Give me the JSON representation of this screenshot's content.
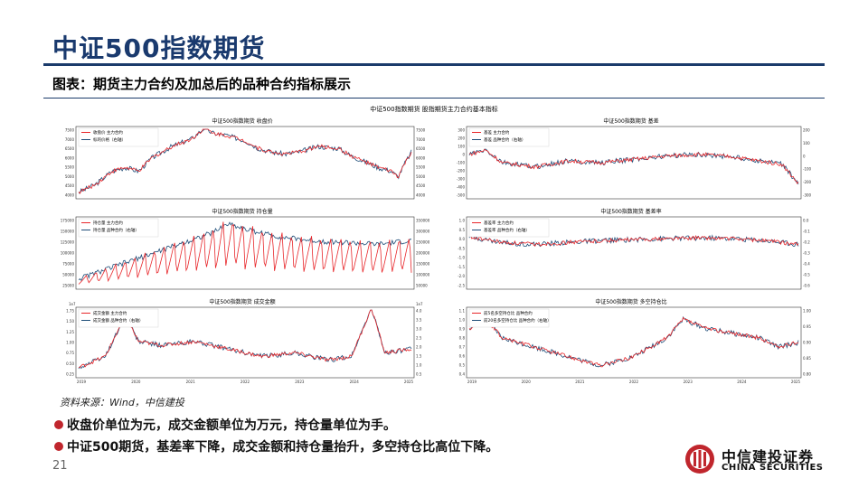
{
  "slide": {
    "title": "中证500指数期货",
    "subtitle": "图表：期货主力合约及加总后的品种合约指标展示",
    "source": "资料来源：Wind，中信建投",
    "notes": [
      "收盘价单位为元，成交金额单位为万元，持仓量单位为手。",
      "中证500期货，基差率下降，成交金额和持仓量抬升，多空持仓比高位下降。"
    ],
    "page_number": "21"
  },
  "logo": {
    "name_cn": "中信建投证券",
    "name_en": "CHINA SECURITIES",
    "icon": "china-securities-logo-icon",
    "color": "#c0262d"
  },
  "figure_title": "中证500指数期货 股指期货主力合约基本指标",
  "colors": {
    "red": "#e8262a",
    "blue": "#1f4e79",
    "title_blue": "#1a3a6e"
  },
  "chart_data": [
    {
      "type": "line",
      "title": "中证500指数期货 收盘价",
      "series": [
        {
          "name": "收盘价 主力合约",
          "color": "#e8262a",
          "axis": "left"
        },
        {
          "name": "标的价格（右轴）",
          "color": "#1f4e79",
          "axis": "right"
        }
      ],
      "y_left": {
        "ticks": [
          "7500",
          "7000",
          "6500",
          "6000",
          "5500",
          "5000",
          "4500",
          "4000"
        ],
        "range": [
          4000,
          7500
        ]
      },
      "y_right": {
        "ticks": [
          "7500",
          "7000",
          "6500",
          "6000",
          "5500",
          "5000",
          "4500",
          "4000"
        ],
        "range": [
          4000,
          7500
        ]
      },
      "x_ticks": [],
      "shape": [
        [
          0,
          4200
        ],
        [
          0.05,
          4600
        ],
        [
          0.1,
          5300
        ],
        [
          0.14,
          5500
        ],
        [
          0.18,
          5300
        ],
        [
          0.22,
          6000
        ],
        [
          0.28,
          6600
        ],
        [
          0.34,
          7000
        ],
        [
          0.38,
          7600
        ],
        [
          0.4,
          7300
        ],
        [
          0.44,
          7200
        ],
        [
          0.5,
          6900
        ],
        [
          0.54,
          6500
        ],
        [
          0.58,
          6300
        ],
        [
          0.62,
          6200
        ],
        [
          0.66,
          6300
        ],
        [
          0.72,
          6600
        ],
        [
          0.78,
          6500
        ],
        [
          0.82,
          6100
        ],
        [
          0.86,
          5800
        ],
        [
          0.9,
          5500
        ],
        [
          0.94,
          5300
        ],
        [
          0.96,
          5000
        ],
        [
          0.98,
          5700
        ],
        [
          1.0,
          6300
        ]
      ]
    },
    {
      "type": "line",
      "title": "中证500指数期货 基差",
      "series": [
        {
          "name": "基差 主力合约",
          "color": "#e8262a",
          "axis": "left"
        },
        {
          "name": "基差 品种合约（右轴）",
          "color": "#1f4e79",
          "axis": "right"
        }
      ],
      "y_left": {
        "ticks": [
          "300",
          "200",
          "100",
          "0",
          "-100",
          "-200",
          "-300",
          "-400",
          "-500"
        ],
        "range": [
          -500,
          300
        ]
      },
      "y_right": {
        "ticks": [
          "200",
          "100",
          "0",
          "-100",
          "-200",
          "-300"
        ],
        "range": [
          -300,
          200
        ]
      },
      "x_ticks": [],
      "shape": [
        [
          0,
          0
        ],
        [
          0.05,
          50
        ],
        [
          0.1,
          -100
        ],
        [
          0.2,
          -150
        ],
        [
          0.3,
          -80
        ],
        [
          0.4,
          -100
        ],
        [
          0.5,
          -60
        ],
        [
          0.6,
          -20
        ],
        [
          0.7,
          0
        ],
        [
          0.8,
          -30
        ],
        [
          0.85,
          -60
        ],
        [
          0.9,
          -90
        ],
        [
          0.95,
          -120
        ],
        [
          1.0,
          -350
        ]
      ]
    },
    {
      "type": "line",
      "title": "中证500指数期货 持仓量",
      "series": [
        {
          "name": "持仓量 主力合约",
          "color": "#e8262a",
          "axis": "left"
        },
        {
          "name": "持仓量 品种合约（右轴）",
          "color": "#1f4e79",
          "axis": "right"
        }
      ],
      "y_left": {
        "ticks": [
          "175000",
          "150000",
          "125000",
          "100000",
          "75000",
          "50000",
          "25000"
        ],
        "range": [
          0,
          175000
        ]
      },
      "y_right": {
        "ticks": [
          "350000",
          "300000",
          "250000",
          "200000",
          "150000",
          "100000",
          "50000"
        ],
        "range": [
          0,
          350000
        ]
      },
      "x_ticks": [],
      "shape": [
        [
          0,
          20000
        ],
        [
          0.1,
          50000
        ],
        [
          0.2,
          80000
        ],
        [
          0.3,
          110000
        ],
        [
          0.4,
          140000
        ],
        [
          0.45,
          165000
        ],
        [
          0.5,
          150000
        ],
        [
          0.6,
          130000
        ],
        [
          0.7,
          120000
        ],
        [
          0.8,
          115000
        ],
        [
          0.9,
          110000
        ],
        [
          1.0,
          120000
        ]
      ]
    },
    {
      "type": "line",
      "title": "中证500指数期货 基差率",
      "series": [
        {
          "name": "基差率 主力合约",
          "color": "#e8262a",
          "axis": "left"
        },
        {
          "name": "基差率 品种合约（右轴）",
          "color": "#1f4e79",
          "axis": "right"
        }
      ],
      "y_left": {
        "ticks": [
          "1.0",
          "0.5",
          "0.0",
          "-0.5",
          "-1.0",
          "-1.5",
          "-2.0",
          "-2.5"
        ],
        "range": [
          -2.5,
          1.0
        ]
      },
      "y_right": {
        "ticks": [
          "0.0",
          "-0.1",
          "-0.2",
          "-0.3",
          "-0.4",
          "-0.5",
          "-0.6"
        ],
        "range": [
          -0.6,
          0.0
        ]
      },
      "x_ticks": [],
      "shape": [
        [
          0,
          0.1
        ],
        [
          0.1,
          -0.2
        ],
        [
          0.2,
          -0.3
        ],
        [
          0.3,
          -0.2
        ],
        [
          0.4,
          -0.1
        ],
        [
          0.5,
          -0.05
        ],
        [
          0.6,
          0.0
        ],
        [
          0.7,
          0.05
        ],
        [
          0.8,
          0.0
        ],
        [
          0.9,
          -0.1
        ],
        [
          1.0,
          -0.3
        ]
      ]
    },
    {
      "type": "line",
      "title": "中证500指数期货 成交金额",
      "series": [
        {
          "name": "成交金额 主力合约",
          "color": "#e8262a",
          "axis": "left"
        },
        {
          "name": "成交金额 品种合约（右轴）",
          "color": "#1f4e79",
          "axis": "right"
        }
      ],
      "y_left": {
        "ticks": [
          "1.75",
          "1.50",
          "1.25",
          "1.00",
          "0.75",
          "0.50",
          "0.25"
        ],
        "range": [
          0,
          1.75
        ],
        "unit": "1e7"
      },
      "y_right": {
        "ticks": [
          "4.0",
          "3.5",
          "3.0",
          "2.5",
          "2.0",
          "1.5",
          "1.0",
          "0.5"
        ],
        "range": [
          0,
          4.0
        ],
        "unit": "1e7"
      },
      "x_ticks": [
        "2019",
        "2020",
        "2021",
        "2022",
        "2023",
        "2024",
        "2025"
      ],
      "shape": [
        [
          0,
          0.2
        ],
        [
          0.08,
          0.5
        ],
        [
          0.14,
          1.6
        ],
        [
          0.18,
          0.9
        ],
        [
          0.25,
          0.8
        ],
        [
          0.35,
          0.9
        ],
        [
          0.45,
          0.7
        ],
        [
          0.55,
          0.5
        ],
        [
          0.65,
          0.6
        ],
        [
          0.75,
          0.4
        ],
        [
          0.82,
          0.5
        ],
        [
          0.88,
          1.8
        ],
        [
          0.92,
          0.6
        ],
        [
          1.0,
          0.7
        ]
      ]
    },
    {
      "type": "line",
      "title": "中证500指数期货 多空持仓比",
      "series": [
        {
          "name": "前5名多空持仓比 品种合约",
          "color": "#e8262a",
          "axis": "left"
        },
        {
          "name": "前20名多空持仓比 品种合约（右轴）",
          "color": "#1f4e79",
          "axis": "right"
        }
      ],
      "y_left": {
        "ticks": [
          "1.1",
          "1.0",
          "0.9",
          "0.8",
          "0.7",
          "0.6",
          "0.5",
          "0.4"
        ],
        "range": [
          0.4,
          1.1
        ]
      },
      "y_right": {
        "ticks": [
          "1.00",
          "0.95",
          "0.90",
          "0.85",
          "0.80"
        ],
        "range": [
          0.8,
          1.0
        ]
      },
      "x_ticks": [
        "2019",
        "2020",
        "2021",
        "2022",
        "2023",
        "2024",
        "2025"
      ],
      "shape": [
        [
          0,
          0.9
        ],
        [
          0.05,
          1.0
        ],
        [
          0.1,
          0.8
        ],
        [
          0.2,
          0.7
        ],
        [
          0.3,
          0.6
        ],
        [
          0.4,
          0.5
        ],
        [
          0.5,
          0.6
        ],
        [
          0.6,
          0.8
        ],
        [
          0.65,
          1.0
        ],
        [
          0.72,
          0.9
        ],
        [
          0.8,
          0.85
        ],
        [
          0.88,
          0.8
        ],
        [
          0.94,
          0.7
        ],
        [
          1.0,
          0.75
        ]
      ]
    }
  ]
}
